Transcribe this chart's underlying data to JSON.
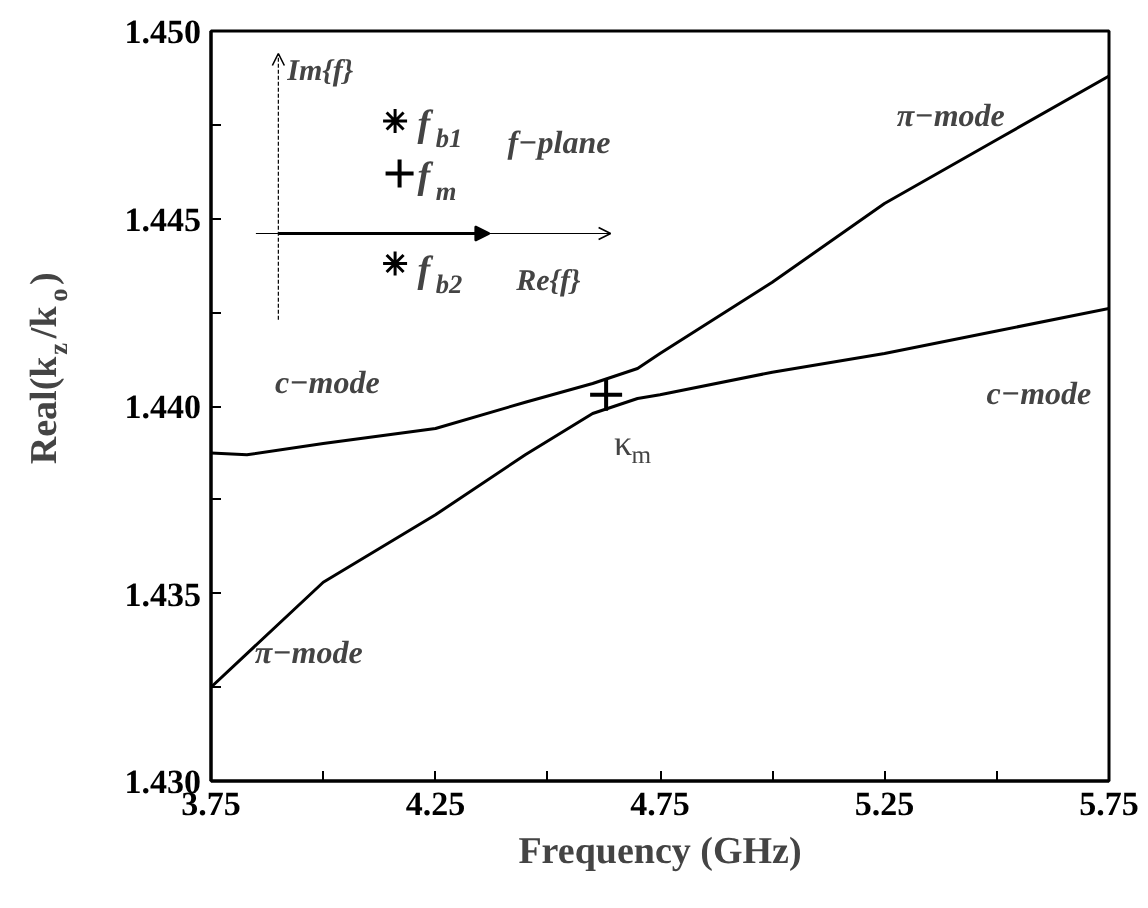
{
  "chart_data": {
    "type": "line",
    "xlabel": "Frequency (GHz)",
    "ylabel": "Real(k$_{z}$/k$_{o}$)",
    "xlim": [
      3.75,
      5.75
    ],
    "ylim": [
      1.43,
      1.45
    ],
    "xticks": [
      3.75,
      {
        "value": 4.0,
        "label": null
      },
      4.25,
      {
        "value": 4.5,
        "label": null
      },
      4.75,
      {
        "value": 5.0,
        "label": null
      },
      5.25,
      {
        "value": 5.5,
        "label": null
      },
      5.75
    ],
    "yticks": [
      {
        "value": 1.43,
        "label": "1.430"
      },
      {
        "value": 1.4325,
        "label": null
      },
      {
        "value": 1.435,
        "label": "1.435"
      },
      {
        "value": 1.4375,
        "label": null
      },
      {
        "value": 1.44,
        "label": "1.440"
      },
      {
        "value": 1.4425,
        "label": null
      },
      {
        "value": 1.445,
        "label": "1.445"
      },
      {
        "value": 1.4475,
        "label": null
      },
      {
        "value": 1.45,
        "label": "1.450"
      }
    ],
    "grid": false,
    "line_style": "solid",
    "marker": "none",
    "series": [
      {
        "color": "#000000",
        "x": [
          3.75,
          3.83,
          4.0,
          4.25,
          4.45,
          4.6,
          4.65,
          4.7,
          4.75,
          5.0,
          5.25,
          5.5,
          5.75
        ],
        "values": [
          1.43875,
          1.4387,
          1.439,
          1.4394,
          1.4401,
          1.4406,
          1.4408,
          1.441,
          1.4414,
          1.4433,
          1.4454,
          1.4471,
          1.4488
        ]
      },
      {
        "color": "#000000",
        "x": [
          3.75,
          4.0,
          4.25,
          4.45,
          4.6,
          4.65,
          4.7,
          4.75,
          5.0,
          5.25,
          5.5,
          5.75
        ],
        "values": [
          1.4325,
          1.4353,
          1.4371,
          1.4387,
          1.4398,
          1.44,
          1.4402,
          1.4403,
          1.4409,
          1.4414,
          1.442,
          1.4426
        ]
      },
      {
        "type": "scatter",
        "name": "κ$_{m}$",
        "marker": "cross",
        "color": "#000000",
        "x": [
          4.63
        ],
        "values": [
          1.4403
        ]
      }
    ],
    "annotations": [
      "c−mode",
      "π−mode",
      "c−mode",
      "π−mode",
      "f−plane",
      "Im{f}",
      "Re{f}",
      "f$_{b1}$",
      "f$_{m}$",
      "f$_{b2}$"
    ]
  }
}
